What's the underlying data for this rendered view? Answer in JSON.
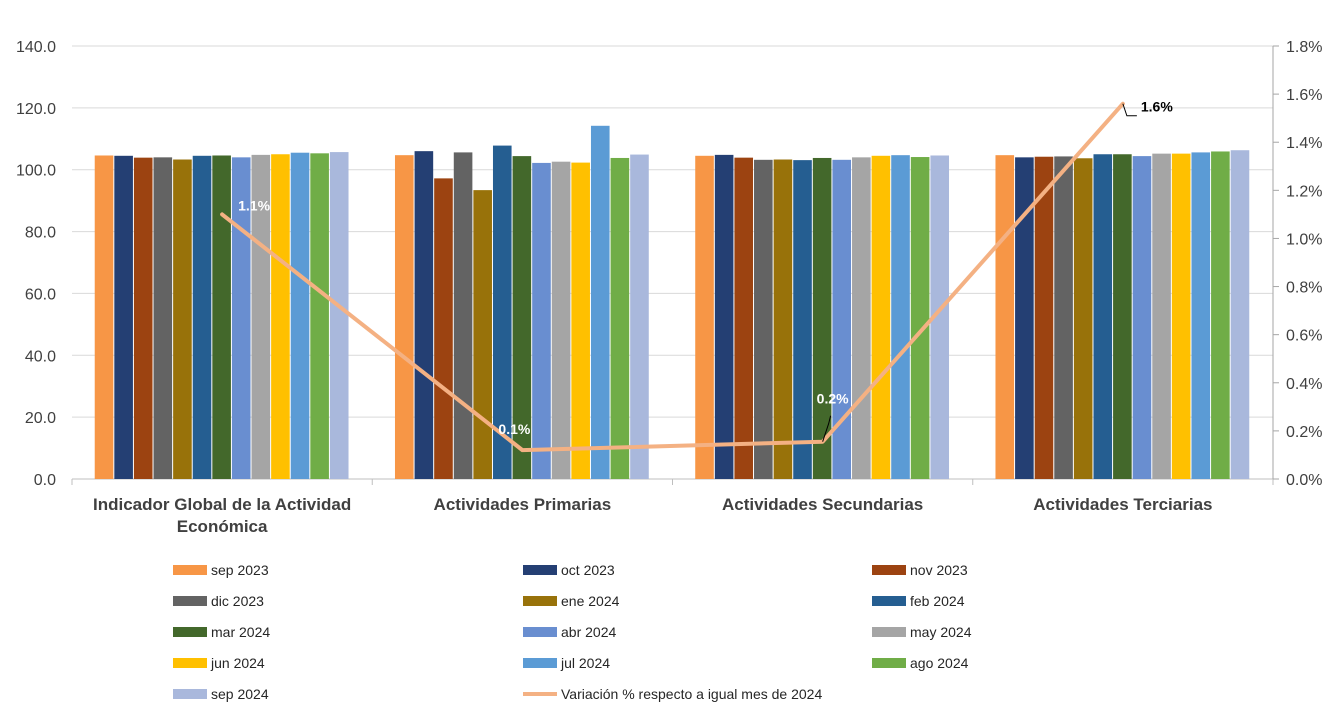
{
  "chart_data": {
    "type": "bar",
    "categories": [
      "Indicador Global de la Actividad Económica",
      "Actividades Primarias",
      "Actividades Secundarias",
      "Actividades Terciarias"
    ],
    "series": [
      {
        "name": "sep 2023",
        "color": "#F79646",
        "values": [
          104.6,
          104.7,
          104.5,
          104.7
        ]
      },
      {
        "name": "oct 2023",
        "color": "#243F73",
        "values": [
          104.5,
          106.0,
          104.8,
          104.0
        ]
      },
      {
        "name": "nov 2023",
        "color": "#9C4311",
        "values": [
          103.9,
          97.2,
          103.9,
          104.2
        ]
      },
      {
        "name": "dic 2023",
        "color": "#636363",
        "values": [
          104.0,
          105.6,
          103.2,
          104.3
        ]
      },
      {
        "name": "ene 2024",
        "color": "#98720A",
        "values": [
          103.3,
          93.4,
          103.3,
          103.7
        ]
      },
      {
        "name": "feb 2024",
        "color": "#255E91",
        "values": [
          104.5,
          107.8,
          103.1,
          105.0
        ]
      },
      {
        "name": "mar 2024",
        "color": "#43682B",
        "values": [
          104.6,
          104.4,
          103.8,
          105.0
        ]
      },
      {
        "name": "abr 2024",
        "color": "#698ED0",
        "values": [
          104.0,
          102.2,
          103.2,
          104.4
        ]
      },
      {
        "name": "may 2024",
        "color": "#A5A5A5",
        "values": [
          104.8,
          102.6,
          104.0,
          105.2
        ]
      },
      {
        "name": "jun 2024",
        "color": "#FFC000",
        "values": [
          105.0,
          102.3,
          104.5,
          105.2
        ]
      },
      {
        "name": "jul 2024",
        "color": "#5B9BD5",
        "values": [
          105.5,
          114.2,
          104.7,
          105.6
        ]
      },
      {
        "name": "ago 2024",
        "color": "#70AD47",
        "values": [
          105.3,
          103.8,
          104.1,
          105.9
        ]
      },
      {
        "name": "sep 2024",
        "color": "#A9B8DC",
        "values": [
          105.7,
          104.9,
          104.6,
          106.3
        ]
      }
    ],
    "line_series": {
      "name": "Variación % respecto a igual mes de 2024",
      "color": "#F4B183",
      "values": [
        1.1,
        0.12,
        0.155,
        1.56
      ],
      "labels": [
        "1.1%",
        "0.1%",
        "0.2%",
        "1.6%"
      ]
    },
    "y_left": {
      "min": 0,
      "max": 140,
      "step": 20,
      "tick_labels": [
        "0.0",
        "20.0",
        "40.0",
        "60.0",
        "80.0",
        "100.0",
        "120.0",
        "140.0"
      ]
    },
    "y_right": {
      "min": 0,
      "max": 1.8,
      "step": 0.2,
      "tick_labels": [
        "0.0%",
        "0.2%",
        "0.4%",
        "0.6%",
        "0.8%",
        "1.0%",
        "1.2%",
        "1.4%",
        "1.6%",
        "1.8%"
      ]
    },
    "category_label_lines": [
      [
        "Indicador Global de la Actividad",
        "Económica"
      ],
      [
        "Actividades Primarias"
      ],
      [
        "Actividades Secundarias"
      ],
      [
        "Actividades Terciarias"
      ]
    ],
    "grid": true,
    "legend_position": "bottom"
  }
}
